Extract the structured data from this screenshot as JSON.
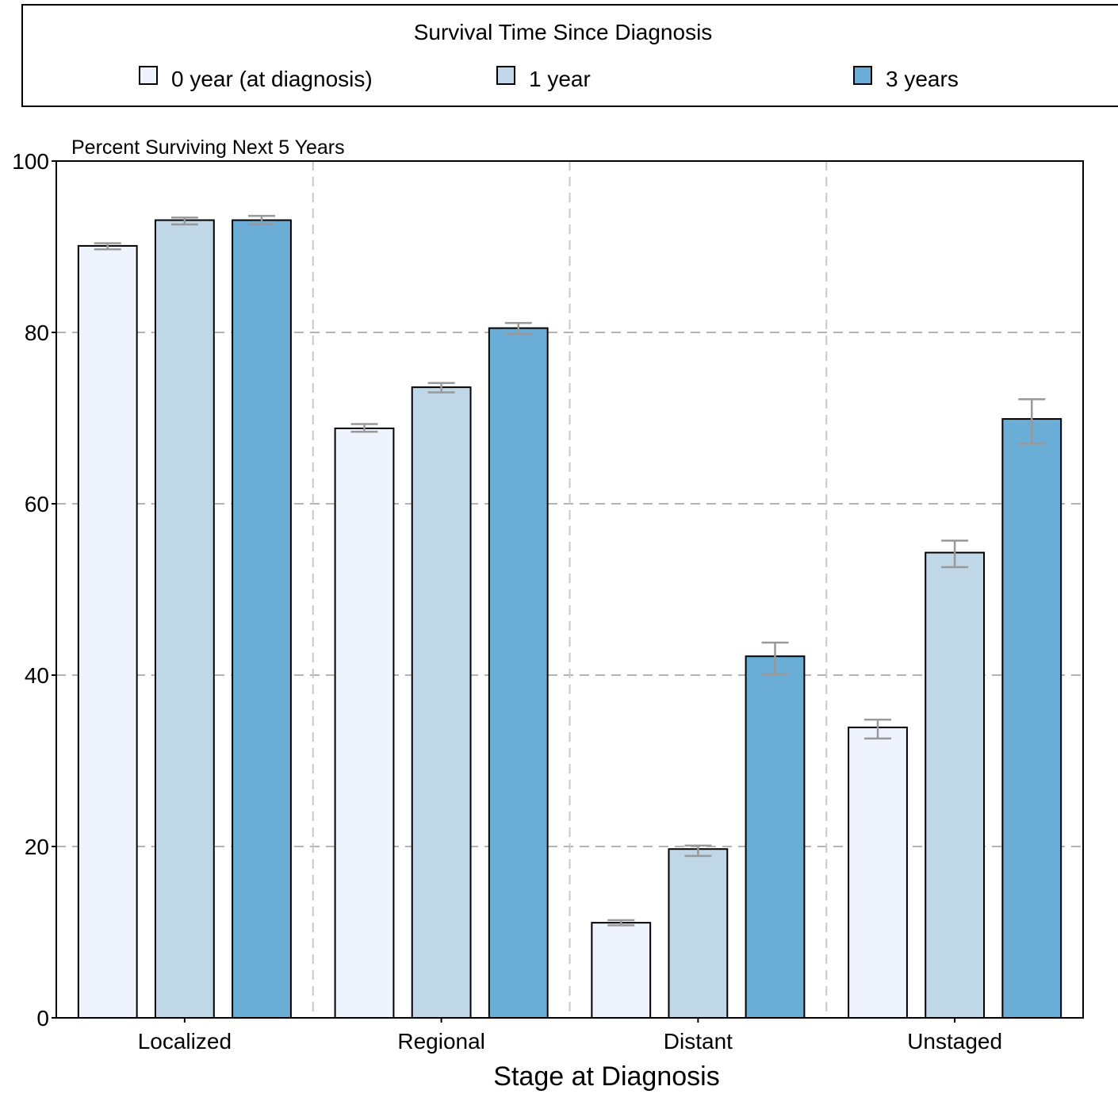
{
  "chart_data": {
    "type": "bar",
    "legend_title": "Survival Time Since Diagnosis",
    "legend_position": "top",
    "y_axis_title": "Percent Surviving Next 5 Years",
    "xlabel": "Stage at Diagnosis",
    "ylim": [
      0,
      100
    ],
    "yticks": [
      "0",
      "20",
      "40",
      "60",
      "80",
      "100"
    ],
    "grid": true,
    "categories": [
      "Localized",
      "Regional",
      "Distant",
      "Unstaged"
    ],
    "series": [
      {
        "name": "0 year (at diagnosis)",
        "color": "#eef3fd",
        "values": [
          90.1,
          68.8,
          11.1,
          33.9
        ],
        "ci_low": [
          89.7,
          68.4,
          10.8,
          32.6
        ],
        "ci_high": [
          90.4,
          69.3,
          11.4,
          34.8
        ]
      },
      {
        "name": "1 year",
        "color": "#c0d7e7",
        "values": [
          93.1,
          73.6,
          19.7,
          54.3
        ],
        "ci_low": [
          92.6,
          73.0,
          18.9,
          52.6
        ],
        "ci_high": [
          93.4,
          74.1,
          20.1,
          55.7
        ]
      },
      {
        "name": "3 years",
        "color": "#6aadd7",
        "values": [
          93.1,
          80.5,
          42.2,
          69.9
        ],
        "ci_low": [
          92.6,
          79.8,
          40.1,
          67.0
        ],
        "ci_high": [
          93.6,
          81.1,
          43.8,
          72.2
        ]
      }
    ]
  }
}
